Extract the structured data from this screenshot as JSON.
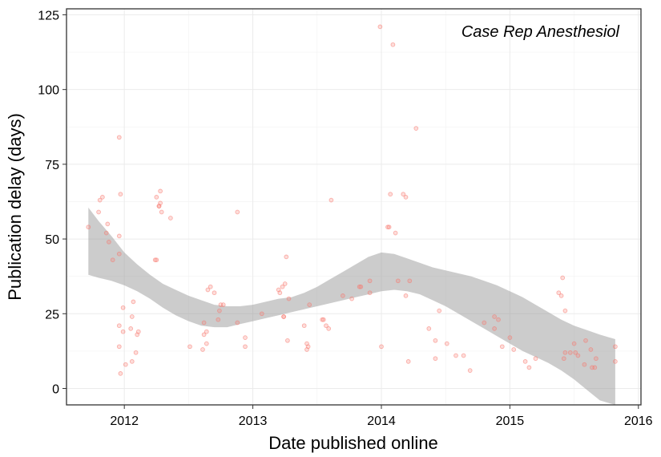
{
  "chart_data": {
    "type": "scatter",
    "title": "",
    "annotation": "Case Rep Anesthesiol",
    "xlabel": "Date published online",
    "ylabel": "Publication delay (days)",
    "xlim": [
      2011.55,
      2016.02
    ],
    "ylim": [
      -5.5,
      127
    ],
    "x_ticks": [
      2012,
      2013,
      2014,
      2015,
      2016
    ],
    "x_tick_labels": [
      "2012",
      "2013",
      "2014",
      "2015",
      "2016"
    ],
    "y_ticks": [
      0,
      25,
      50,
      75,
      100,
      125
    ],
    "y_tick_labels": [
      "0",
      "25",
      "50",
      "75",
      "100",
      "125"
    ],
    "grid": true,
    "legend": "none",
    "point_color": "#f8766d",
    "band_color": "#999999",
    "points": [
      [
        2011.72,
        54
      ],
      [
        2011.8,
        59
      ],
      [
        2011.81,
        63
      ],
      [
        2011.83,
        64
      ],
      [
        2011.86,
        52
      ],
      [
        2011.87,
        55
      ],
      [
        2011.88,
        49
      ],
      [
        2011.91,
        43
      ],
      [
        2011.96,
        84
      ],
      [
        2011.96,
        45
      ],
      [
        2011.96,
        51
      ],
      [
        2011.97,
        65
      ],
      [
        2011.96,
        14
      ],
      [
        2011.96,
        21
      ],
      [
        2011.97,
        5
      ],
      [
        2011.99,
        27
      ],
      [
        2011.99,
        19
      ],
      [
        2012.01,
        8
      ],
      [
        2012.05,
        20
      ],
      [
        2012.06,
        9
      ],
      [
        2012.06,
        24
      ],
      [
        2012.07,
        29
      ],
      [
        2012.09,
        12
      ],
      [
        2012.1,
        18
      ],
      [
        2012.11,
        19
      ],
      [
        2012.24,
        43
      ],
      [
        2012.25,
        43
      ],
      [
        2012.25,
        64
      ],
      [
        2012.27,
        61
      ],
      [
        2012.27,
        61
      ],
      [
        2012.28,
        62
      ],
      [
        2012.28,
        66
      ],
      [
        2012.29,
        59
      ],
      [
        2012.36,
        57
      ],
      [
        2012.51,
        14
      ],
      [
        2012.61,
        13
      ],
      [
        2012.62,
        22
      ],
      [
        2012.62,
        18
      ],
      [
        2012.64,
        19
      ],
      [
        2012.64,
        15
      ],
      [
        2012.65,
        33
      ],
      [
        2012.67,
        34
      ],
      [
        2012.7,
        32
      ],
      [
        2012.73,
        23
      ],
      [
        2012.74,
        26
      ],
      [
        2012.75,
        28
      ],
      [
        2012.77,
        28
      ],
      [
        2012.88,
        22
      ],
      [
        2012.88,
        59
      ],
      [
        2012.94,
        17
      ],
      [
        2012.94,
        14
      ],
      [
        2013.07,
        25
      ],
      [
        2013.2,
        33
      ],
      [
        2013.21,
        32
      ],
      [
        2013.23,
        34
      ],
      [
        2013.24,
        24
      ],
      [
        2013.24,
        24
      ],
      [
        2013.25,
        35
      ],
      [
        2013.26,
        44
      ],
      [
        2013.27,
        16
      ],
      [
        2013.28,
        30
      ],
      [
        2013.4,
        21
      ],
      [
        2013.42,
        15
      ],
      [
        2013.42,
        13
      ],
      [
        2013.43,
        14
      ],
      [
        2013.44,
        28
      ],
      [
        2013.54,
        23
      ],
      [
        2013.55,
        23
      ],
      [
        2013.57,
        21
      ],
      [
        2013.59,
        20
      ],
      [
        2013.61,
        63
      ],
      [
        2013.7,
        31
      ],
      [
        2013.77,
        30
      ],
      [
        2013.83,
        34
      ],
      [
        2013.84,
        34
      ],
      [
        2013.91,
        32
      ],
      [
        2013.91,
        36
      ],
      [
        2013.99,
        121
      ],
      [
        2014.0,
        14
      ],
      [
        2014.05,
        54
      ],
      [
        2014.06,
        54
      ],
      [
        2014.07,
        65
      ],
      [
        2014.09,
        115
      ],
      [
        2014.11,
        52
      ],
      [
        2014.13,
        36
      ],
      [
        2014.17,
        65
      ],
      [
        2014.19,
        64
      ],
      [
        2014.19,
        31
      ],
      [
        2014.21,
        9
      ],
      [
        2014.22,
        36
      ],
      [
        2014.27,
        87
      ],
      [
        2014.37,
        20
      ],
      [
        2014.42,
        10
      ],
      [
        2014.42,
        16
      ],
      [
        2014.45,
        26
      ],
      [
        2014.51,
        15
      ],
      [
        2014.58,
        11
      ],
      [
        2014.64,
        11
      ],
      [
        2014.69,
        6
      ],
      [
        2014.8,
        22
      ],
      [
        2014.88,
        20
      ],
      [
        2014.88,
        24
      ],
      [
        2014.91,
        23
      ],
      [
        2014.94,
        14
      ],
      [
        2015.0,
        17
      ],
      [
        2015.03,
        13
      ],
      [
        2015.12,
        9
      ],
      [
        2015.15,
        7
      ],
      [
        2015.2,
        10
      ],
      [
        2015.38,
        32
      ],
      [
        2015.4,
        31
      ],
      [
        2015.41,
        37
      ],
      [
        2015.42,
        10
      ],
      [
        2015.43,
        26
      ],
      [
        2015.43,
        12
      ],
      [
        2015.47,
        12
      ],
      [
        2015.5,
        15
      ],
      [
        2015.51,
        12
      ],
      [
        2015.53,
        11
      ],
      [
        2015.58,
        8
      ],
      [
        2015.59,
        16
      ],
      [
        2015.63,
        13
      ],
      [
        2015.64,
        7
      ],
      [
        2015.66,
        7
      ],
      [
        2015.67,
        10
      ],
      [
        2015.82,
        14
      ],
      [
        2015.82,
        9
      ]
    ],
    "smooth_band": {
      "x": [
        2011.72,
        2011.8,
        2011.9,
        2012.0,
        2012.1,
        2012.2,
        2012.3,
        2012.4,
        2012.5,
        2012.6,
        2012.7,
        2012.8,
        2012.9,
        2013.0,
        2013.1,
        2013.2,
        2013.3,
        2013.4,
        2013.5,
        2013.6,
        2013.7,
        2013.8,
        2013.9,
        2014.0,
        2014.1,
        2014.2,
        2014.3,
        2014.4,
        2014.5,
        2014.6,
        2014.7,
        2014.8,
        2014.9,
        2015.0,
        2015.1,
        2015.2,
        2015.3,
        2015.4,
        2015.5,
        2015.6,
        2015.7,
        2015.82
      ],
      "upper": [
        60.5,
        56.0,
        51.0,
        45.5,
        41.5,
        38.0,
        35.0,
        33.0,
        31.0,
        29.5,
        28.0,
        27.5,
        27.5,
        28.0,
        29.0,
        30.0,
        30.5,
        32.0,
        34.0,
        36.5,
        39.0,
        41.5,
        44.0,
        45.5,
        45.0,
        43.5,
        42.0,
        40.5,
        39.5,
        38.5,
        37.5,
        36.0,
        34.5,
        32.5,
        30.5,
        28.0,
        25.5,
        23.0,
        21.0,
        19.5,
        18.0,
        16.5
      ],
      "lower": [
        38.0,
        37.0,
        36.0,
        34.5,
        32.5,
        30.0,
        27.0,
        24.5,
        22.5,
        21.0,
        20.5,
        20.5,
        21.5,
        22.5,
        23.5,
        24.5,
        25.5,
        26.5,
        27.5,
        28.5,
        29.5,
        30.5,
        31.5,
        32.5,
        33.0,
        32.5,
        31.5,
        29.5,
        27.5,
        25.0,
        22.5,
        20.0,
        17.5,
        15.0,
        12.5,
        10.5,
        8.5,
        6.0,
        3.0,
        -0.5,
        -4.0,
        -6.0
      ]
    }
  }
}
